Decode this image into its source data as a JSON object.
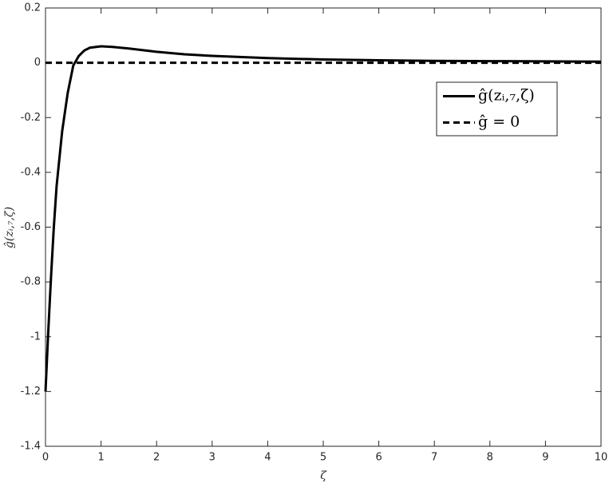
{
  "chart_data": {
    "type": "line",
    "x_label": "ζ",
    "y_label": "ĝ(zᵢ,₇,ζ)",
    "x": [
      0,
      0.05,
      0.1,
      0.15,
      0.2,
      0.3,
      0.4,
      0.5,
      0.6,
      0.7,
      0.8,
      1,
      1.2,
      1.5,
      2,
      2.5,
      3,
      4,
      5,
      6,
      7,
      8,
      9,
      10
    ],
    "series": [
      {
        "name": "ĝ(zᵢ,₇,ζ)",
        "color": "#000000",
        "dash": false,
        "values": [
          -1.2,
          -0.98,
          -0.78,
          -0.6,
          -0.45,
          -0.25,
          -0.11,
          -0.01,
          0.025,
          0.045,
          0.055,
          0.06,
          0.058,
          0.052,
          0.04,
          0.031,
          0.025,
          0.017,
          0.012,
          0.009,
          0.007,
          0.006,
          0.005,
          0.004
        ]
      },
      {
        "name": "ĝ = 0",
        "color": "#000000",
        "dash": true,
        "values": [
          0,
          0,
          0,
          0,
          0,
          0,
          0,
          0,
          0,
          0,
          0,
          0,
          0,
          0,
          0,
          0,
          0,
          0,
          0,
          0,
          0,
          0,
          0,
          0
        ]
      }
    ],
    "xlim": [
      0,
      10
    ],
    "xticks": [
      0,
      1,
      2,
      3,
      4,
      5,
      6,
      7,
      8,
      9,
      10
    ],
    "ylim": [
      -1.4,
      0.2
    ],
    "yticks": [
      -1.4,
      -1.2,
      -1,
      -0.8,
      -0.6,
      -0.4,
      -0.2,
      0,
      0.2
    ],
    "legend": "northeast",
    "grid": false
  }
}
